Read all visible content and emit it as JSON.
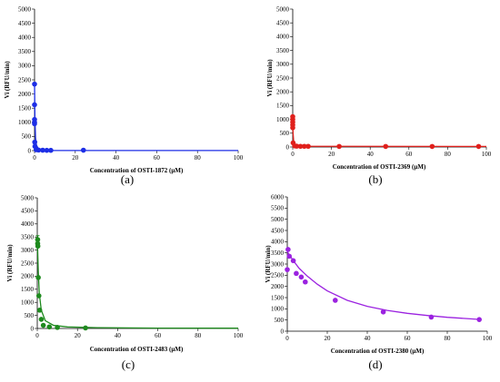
{
  "chart_data": [
    {
      "type": "scatter",
      "panel_label": "(a)",
      "color": "#1d2ee6",
      "xlabel": "Concentration of OSTI-1872 (µM)",
      "ylabel": "Vi (RFU/min)",
      "xlim": [
        0,
        100
      ],
      "ylim": [
        0,
        5000
      ],
      "xticks": [
        0,
        20,
        40,
        60,
        80,
        100
      ],
      "yticks": [
        0,
        500,
        1000,
        1500,
        2000,
        2500,
        3000,
        3500,
        4000,
        4500,
        5000
      ],
      "grid": false,
      "points": [
        [
          0,
          2350
        ],
        [
          0,
          1620
        ],
        [
          0,
          1100
        ],
        [
          0,
          1000
        ],
        [
          0,
          950
        ],
        [
          0.1,
          300
        ],
        [
          0.2,
          150
        ],
        [
          0.8,
          30
        ],
        [
          2,
          20
        ],
        [
          4,
          15
        ],
        [
          6,
          10
        ],
        [
          8,
          10
        ],
        [
          24,
          15
        ]
      ],
      "fit_curve": [
        [
          0,
          2350
        ],
        [
          0.2,
          1200
        ],
        [
          0.5,
          450
        ],
        [
          1,
          180
        ],
        [
          2,
          60
        ],
        [
          4,
          20
        ],
        [
          8,
          8
        ],
        [
          24,
          3
        ],
        [
          100,
          2
        ]
      ]
    },
    {
      "type": "scatter",
      "panel_label": "(b)",
      "color": "#e0201c",
      "xlabel": "Concentration of OSTI-2369 (µM)",
      "ylabel": "Vi (RFU/min)",
      "xlim": [
        0,
        100
      ],
      "ylim": [
        0,
        5000
      ],
      "xticks": [
        0,
        20,
        40,
        60,
        80,
        100
      ],
      "yticks": [
        0,
        500,
        1000,
        1500,
        2000,
        2500,
        3000,
        3500,
        4000,
        4500,
        5000
      ],
      "grid": false,
      "points": [
        [
          0,
          1100
        ],
        [
          0,
          1000
        ],
        [
          0,
          900
        ],
        [
          0,
          800
        ],
        [
          0,
          700
        ],
        [
          0.2,
          150
        ],
        [
          1,
          40
        ],
        [
          2,
          30
        ],
        [
          4,
          25
        ],
        [
          6,
          25
        ],
        [
          8,
          25
        ],
        [
          24,
          20
        ],
        [
          48,
          20
        ],
        [
          72,
          20
        ],
        [
          96,
          20
        ]
      ],
      "fit_curve": [
        [
          0,
          1050
        ],
        [
          0.2,
          500
        ],
        [
          0.5,
          180
        ],
        [
          1,
          70
        ],
        [
          2,
          35
        ],
        [
          5,
          25
        ],
        [
          100,
          20
        ]
      ]
    },
    {
      "type": "scatter",
      "panel_label": "(c)",
      "color": "#1e8a1e",
      "xlabel": "Concentration of OSTI-2483 (µM)",
      "ylabel": "Vi (RFU/min)",
      "xlim": [
        0,
        100
      ],
      "ylim": [
        0,
        5000
      ],
      "xticks": [
        0,
        20,
        40,
        60,
        80,
        100
      ],
      "yticks": [
        0,
        500,
        1000,
        1500,
        2000,
        2500,
        3000,
        3500,
        4000,
        4500,
        5000
      ],
      "grid": false,
      "points": [
        [
          0.2,
          3400
        ],
        [
          0.2,
          3250
        ],
        [
          0.3,
          3150
        ],
        [
          0.5,
          1950
        ],
        [
          0.8,
          1250
        ],
        [
          1.2,
          700
        ],
        [
          2,
          350
        ],
        [
          3,
          120
        ],
        [
          6,
          60
        ],
        [
          10,
          40
        ],
        [
          24,
          20
        ]
      ],
      "error_bars": [
        {
          "x": 0.2,
          "low": 2900,
          "high": 3550
        }
      ],
      "fit_curve": [
        [
          0,
          3500
        ],
        [
          0.5,
          2200
        ],
        [
          1,
          1350
        ],
        [
          2,
          700
        ],
        [
          4,
          300
        ],
        [
          8,
          120
        ],
        [
          15,
          60
        ],
        [
          30,
          30
        ],
        [
          60,
          15
        ],
        [
          100,
          10
        ]
      ]
    },
    {
      "type": "scatter",
      "panel_label": "(d)",
      "color": "#9b22e0",
      "xlabel": "Concentration of OSTI-2380 (µM)",
      "ylabel": "Vi (RFU/min)",
      "xlim": [
        0,
        100
      ],
      "ylim": [
        0,
        6000
      ],
      "xticks": [
        0,
        20,
        40,
        60,
        80,
        100
      ],
      "yticks": [
        0,
        500,
        1000,
        1500,
        2000,
        2500,
        3000,
        3500,
        4000,
        4500,
        5000,
        5500,
        6000
      ],
      "grid": false,
      "points": [
        [
          0,
          2750
        ],
        [
          0.4,
          3650
        ],
        [
          1,
          3350
        ],
        [
          3,
          3150
        ],
        [
          4.5,
          2580
        ],
        [
          7,
          2420
        ],
        [
          9,
          2200
        ],
        [
          24,
          1380
        ],
        [
          48,
          860
        ],
        [
          72,
          630
        ],
        [
          96,
          520
        ]
      ],
      "fit_curve": [
        [
          0,
          3550
        ],
        [
          3,
          3150
        ],
        [
          6,
          2800
        ],
        [
          10,
          2460
        ],
        [
          15,
          2100
        ],
        [
          20,
          1800
        ],
        [
          30,
          1380
        ],
        [
          40,
          1110
        ],
        [
          50,
          930
        ],
        [
          60,
          800
        ],
        [
          70,
          700
        ],
        [
          80,
          620
        ],
        [
          95,
          530
        ]
      ]
    }
  ]
}
